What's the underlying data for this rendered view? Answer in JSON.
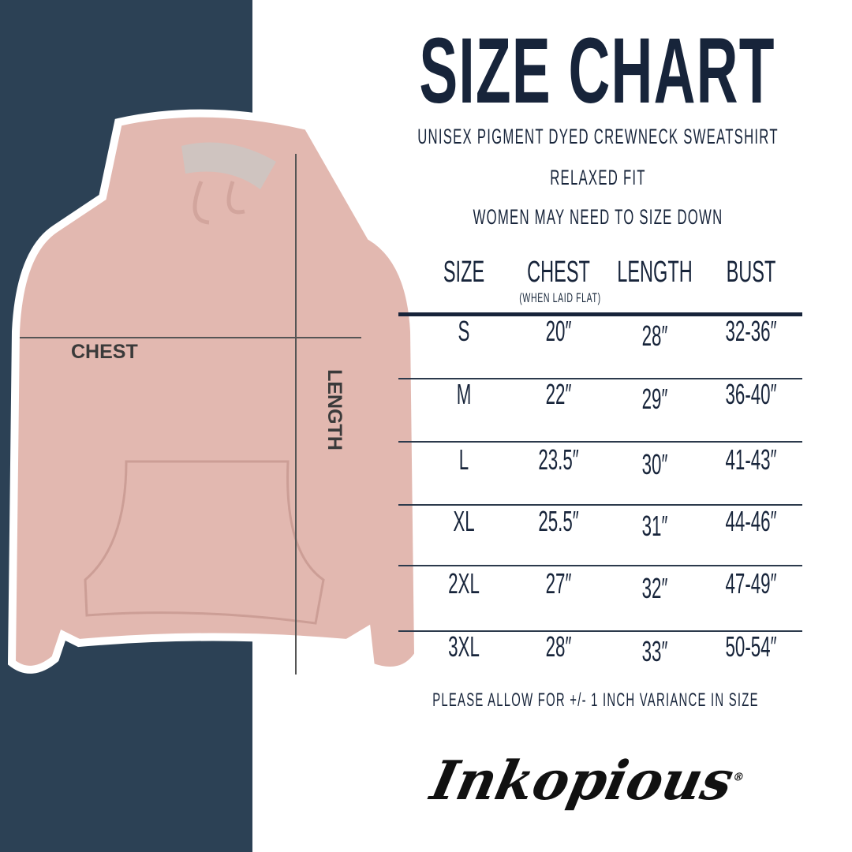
{
  "title": "SIZE CHART",
  "subtitle": "UNISEX PIGMENT DYED CREWNECK SWEATSHIRT",
  "fit": "RELAXED FIT",
  "note": "WOMEN MAY NEED TO SIZE DOWN",
  "table": {
    "headers": [
      "SIZE",
      "CHEST",
      "LENGTH",
      "BUST"
    ],
    "chest_note": "(WHEN LAID FLAT)",
    "rows": [
      [
        "S",
        "20″",
        "28″",
        "32-36″"
      ],
      [
        "M",
        "22″",
        "29″",
        "36-40″"
      ],
      [
        "L",
        "23.5″",
        "30″",
        "41-43″"
      ],
      [
        "XL",
        "25.5″",
        "31″",
        "44-46″"
      ],
      [
        "2XL",
        "27″",
        "32″",
        "47-49″"
      ],
      [
        "3XL",
        "28″",
        "33″",
        "50-54″"
      ]
    ]
  },
  "variance": "PLEASE ALLOW FOR +/- 1 INCH VARIANCE IN SIZE",
  "diagram": {
    "chest_label": "CHEST",
    "length_label": "LENGTH"
  },
  "logo": "Inkopious",
  "colors": {
    "navy": "#2c4155",
    "text": "#17243a",
    "hoodie": "#e2b8b0"
  }
}
